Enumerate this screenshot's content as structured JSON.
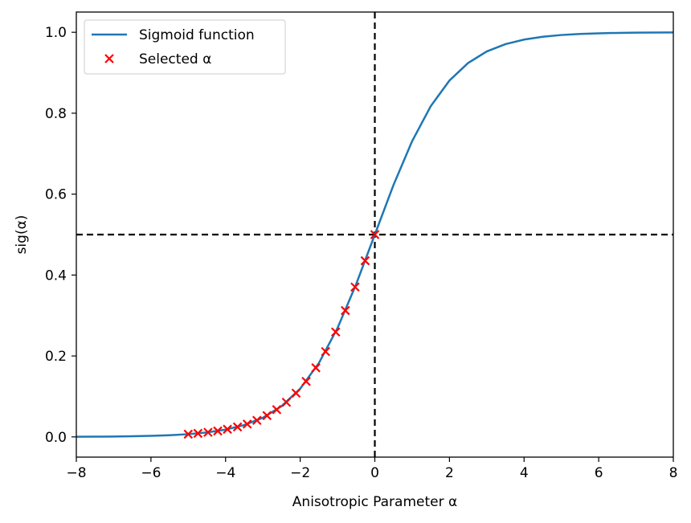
{
  "chart_data": {
    "type": "line",
    "title": "",
    "xlabel": "Anisotropic Parameter α",
    "ylabel": "sig(α)",
    "xlim": [
      -8,
      8
    ],
    "ylim": [
      -0.05,
      1.05
    ],
    "x_ticks": [
      -8,
      -6,
      -4,
      -2,
      0,
      2,
      4,
      6,
      8
    ],
    "x_tick_labels": [
      "−8",
      "−6",
      "−4",
      "−2",
      "0",
      "2",
      "4",
      "6",
      "8"
    ],
    "y_ticks": [
      0.0,
      0.2,
      0.4,
      0.6,
      0.8,
      1.0
    ],
    "y_tick_labels": [
      "0.0",
      "0.2",
      "0.4",
      "0.6",
      "0.8",
      "1.0"
    ],
    "grid": false,
    "legend_position": "top-left",
    "series": [
      {
        "name": "Sigmoid function",
        "kind": "line",
        "color": "#1f77b4",
        "x": [
          -8.0,
          -7.5,
          -7.0,
          -6.5,
          -6.0,
          -5.5,
          -5.0,
          -4.5,
          -4.0,
          -3.5,
          -3.0,
          -2.5,
          -2.0,
          -1.5,
          -1.0,
          -0.5,
          0.0,
          0.5,
          1.0,
          1.5,
          2.0,
          2.5,
          3.0,
          3.5,
          4.0,
          4.5,
          5.0,
          5.5,
          6.0,
          6.5,
          7.0,
          7.5,
          8.0
        ],
        "y": [
          0.0003,
          0.0006,
          0.0009,
          0.0015,
          0.0025,
          0.0041,
          0.0067,
          0.011,
          0.018,
          0.0293,
          0.0474,
          0.0759,
          0.1192,
          0.1824,
          0.2689,
          0.3775,
          0.5,
          0.6225,
          0.7311,
          0.8176,
          0.8808,
          0.9241,
          0.9526,
          0.9707,
          0.982,
          0.989,
          0.9933,
          0.9959,
          0.9975,
          0.9985,
          0.9991,
          0.9994,
          0.9997
        ]
      },
      {
        "name": "Selected α",
        "kind": "scatter",
        "marker": "x",
        "color": "#ff0000",
        "x": [
          -5.0,
          -4.74,
          -4.47,
          -4.21,
          -3.95,
          -3.68,
          -3.42,
          -3.16,
          -2.89,
          -2.63,
          -2.37,
          -2.11,
          -1.84,
          -1.58,
          -1.32,
          -1.05,
          -0.79,
          -0.53,
          -0.26,
          0.0
        ],
        "y": [
          0.0067,
          0.0087,
          0.0113,
          0.0146,
          0.0189,
          0.0246,
          0.0317,
          0.0409,
          0.0526,
          0.0674,
          0.0855,
          0.1081,
          0.1371,
          0.1708,
          0.2108,
          0.2592,
          0.3122,
          0.3705,
          0.4354,
          0.5
        ]
      }
    ],
    "reference_lines": [
      {
        "orientation": "vertical",
        "value": 0,
        "style": "dashed",
        "color": "#000000"
      },
      {
        "orientation": "horizontal",
        "value": 0.5,
        "style": "dashed",
        "color": "#000000"
      }
    ]
  }
}
